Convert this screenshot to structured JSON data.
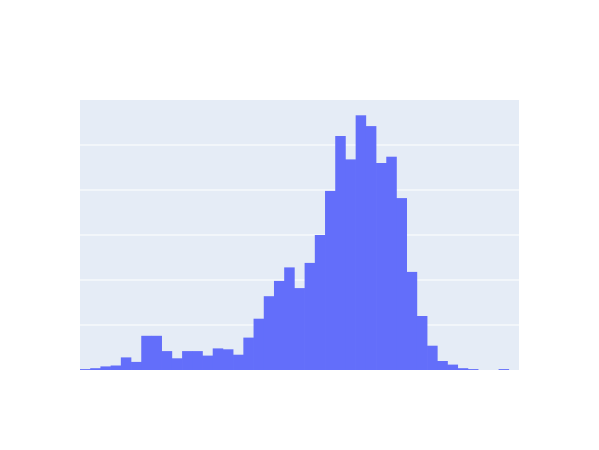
{
  "chart_data": {
    "type": "bar",
    "title": "",
    "xlabel": "",
    "ylabel": "",
    "values": [
      1,
      2,
      4,
      5,
      14,
      9,
      38,
      38,
      21,
      13,
      21,
      21,
      16,
      24,
      23,
      17,
      36,
      57,
      82,
      99,
      114,
      91,
      119,
      150,
      199,
      260,
      234,
      283,
      271,
      230,
      237,
      191,
      109,
      60,
      27,
      10,
      6,
      2,
      1,
      0,
      0,
      1,
      0
    ],
    "ylim": [
      0,
      300
    ],
    "gridlines": [
      50,
      100,
      150,
      200,
      250
    ],
    "grid": true,
    "colors": {
      "bar": "#636efa",
      "plot_background": "#e5ecf6",
      "gridline": "#ffffff",
      "paper_background": "#ffffff"
    }
  }
}
